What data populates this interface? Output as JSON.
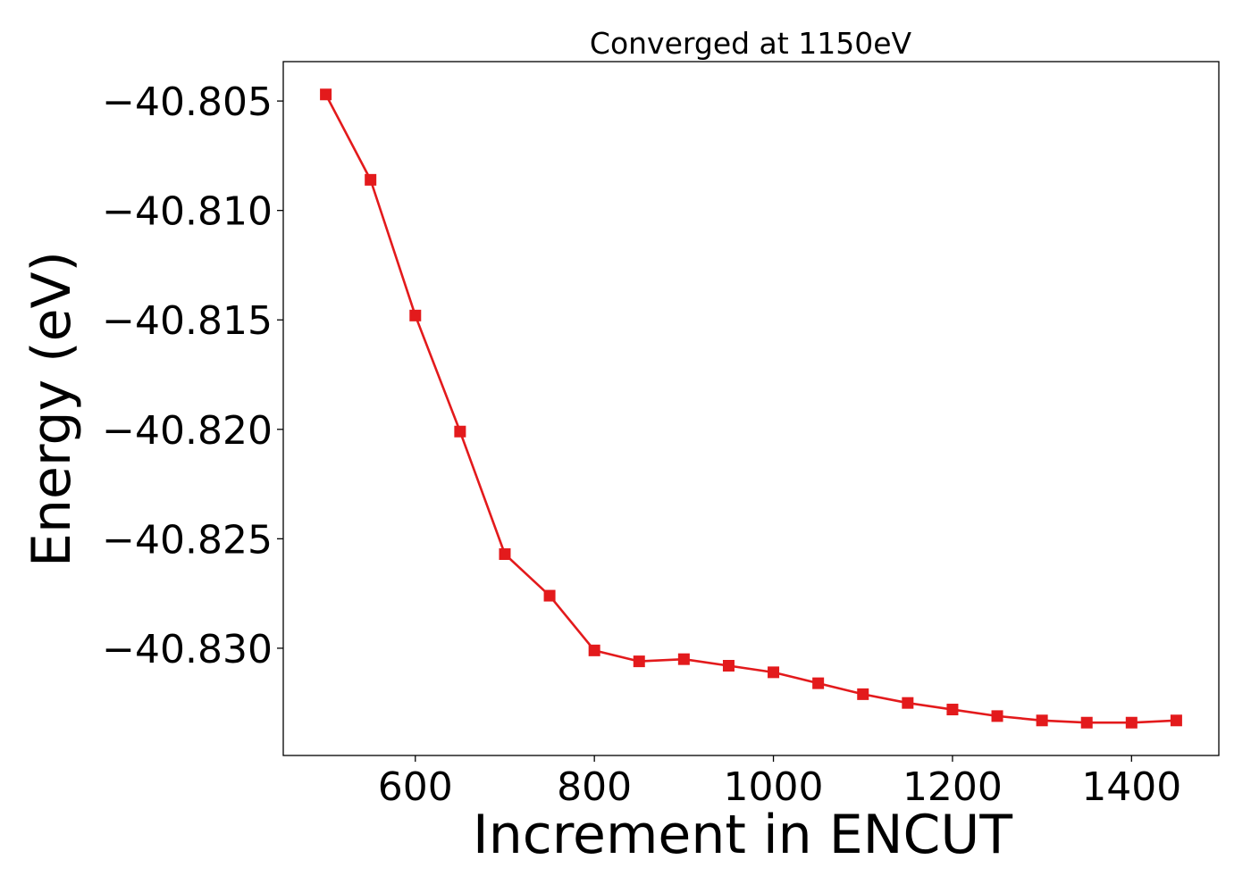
{
  "chart_data": {
    "type": "line",
    "title": "Converged at 1150eV",
    "xlabel": "Increment in ENCUT",
    "ylabel": "Energy (eV)",
    "xlim": [
      452.5,
      1497.5
    ],
    "ylim": [
      -40.8349,
      -40.8032
    ],
    "xticks": [
      600,
      800,
      1000,
      1200,
      1400
    ],
    "yticks": [
      -40.805,
      -40.81,
      -40.815,
      -40.82,
      -40.825,
      -40.83
    ],
    "ytick_labels": [
      "−40.805",
      "−40.810",
      "−40.815",
      "−40.820",
      "−40.825",
      "−40.830"
    ],
    "grid": false,
    "series": [
      {
        "color": "#e31a1c",
        "marker": "square",
        "x": [
          500,
          550,
          600,
          650,
          700,
          750,
          800,
          850,
          900,
          950,
          1000,
          1050,
          1100,
          1150,
          1200,
          1250,
          1300,
          1350,
          1400,
          1450
        ],
        "y": [
          -40.8047,
          -40.8086,
          -40.8148,
          -40.8201,
          -40.8257,
          -40.8276,
          -40.8301,
          -40.8306,
          -40.8305,
          -40.8308,
          -40.8311,
          -40.8316,
          -40.8321,
          -40.8325,
          -40.8328,
          -40.8331,
          -40.8333,
          -40.8334,
          -40.8334,
          -40.8333
        ]
      }
    ]
  }
}
